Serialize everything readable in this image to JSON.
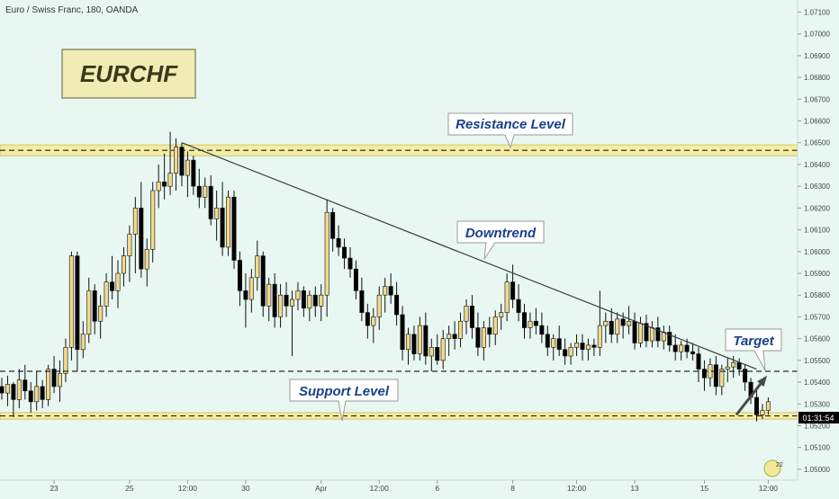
{
  "header": {
    "symbol_line": "Euro / Swiss Franc, 180, OANDA"
  },
  "badge": {
    "label": "EURCHF"
  },
  "annotations": {
    "resistance": "Resistance Level",
    "downtrend": "Downtrend",
    "support": "Support Level",
    "target": "Target"
  },
  "price_tag": "01:31:54",
  "corner_badge": "22",
  "colors": {
    "background": "#e8f7f1",
    "candle_up": "#f2d98b",
    "candle_down": "#000000",
    "zone_fill": "#f2eca6",
    "zone_border": "#d4c864",
    "label_text": "#1a3f8c",
    "badge_fill": "#f0ecb4",
    "badge_text": "#3a3a1a"
  },
  "chart_data": {
    "type": "candlestick",
    "title": "",
    "y_axis_ticks": [
      "1.07100",
      "1.07000",
      "1.06900",
      "1.06800",
      "1.06700",
      "1.06600",
      "1.06500",
      "1.06400",
      "1.06300",
      "1.06200",
      "1.06100",
      "1.06000",
      "1.05900",
      "1.05800",
      "1.05700",
      "1.05600",
      "1.05500",
      "1.05400",
      "1.05300",
      "1.05200",
      "1.05100",
      "1.05000"
    ],
    "ylim": [
      1.0495,
      1.07135
    ],
    "x_axis_labels": [
      {
        "label": "23",
        "slot": 9
      },
      {
        "label": "25",
        "slot": 22
      },
      {
        "label": "12:00",
        "slot": 32
      },
      {
        "label": "30",
        "slot": 42
      },
      {
        "label": "Apr",
        "slot": 55
      },
      {
        "label": "12:00",
        "slot": 65
      },
      {
        "label": "6",
        "slot": 75
      },
      {
        "label": "8",
        "slot": 88
      },
      {
        "label": "12:00",
        "slot": 99
      },
      {
        "label": "13",
        "slot": 109
      },
      {
        "label": "15",
        "slot": 121
      },
      {
        "label": "12:00",
        "slot": 132
      }
    ],
    "resistance_zone": [
      1.0644,
      1.0649
    ],
    "support_zone": [
      1.0523,
      1.0526
    ],
    "current_price_line": 1.0545,
    "downtrend_line": {
      "from": {
        "slot": 31,
        "price": 1.065
      },
      "to": {
        "slot": 130,
        "price": 1.0546
      }
    },
    "target_arrow": {
      "from": {
        "slot": 126.5,
        "price": 1.0525
      },
      "to": {
        "slot": 131.5,
        "price": 1.0542
      }
    },
    "candles": [
      [
        1.0538,
        1.0542,
        1.0532,
        1.0535
      ],
      [
        1.0535,
        1.0543,
        1.0529,
        1.0539
      ],
      [
        1.0539,
        1.054,
        1.0524,
        1.0532
      ],
      [
        1.0532,
        1.0546,
        1.0528,
        1.0541
      ],
      [
        1.0541,
        1.0548,
        1.0532,
        1.0536
      ],
      [
        1.0536,
        1.054,
        1.0526,
        1.0531
      ],
      [
        1.0531,
        1.0545,
        1.0527,
        1.0538
      ],
      [
        1.0538,
        1.0541,
        1.0528,
        1.0532
      ],
      [
        1.0532,
        1.0548,
        1.0529,
        1.0546
      ],
      [
        1.0546,
        1.0552,
        1.0535,
        1.0538
      ],
      [
        1.0538,
        1.055,
        1.0531,
        1.0544
      ],
      [
        1.0544,
        1.056,
        1.054,
        1.0556
      ],
      [
        1.0556,
        1.06,
        1.055,
        1.0598
      ],
      [
        1.0598,
        1.06,
        1.0545,
        1.0555
      ],
      [
        1.0555,
        1.0568,
        1.0551,
        1.0562
      ],
      [
        1.0562,
        1.0588,
        1.0558,
        1.0582
      ],
      [
        1.0582,
        1.0585,
        1.0562,
        1.0568
      ],
      [
        1.0568,
        1.058,
        1.056,
        1.0575
      ],
      [
        1.0575,
        1.059,
        1.057,
        1.0586
      ],
      [
        1.0586,
        1.0598,
        1.0578,
        1.0582
      ],
      [
        1.0582,
        1.0596,
        1.0574,
        1.059
      ],
      [
        1.059,
        1.0602,
        1.0584,
        1.0598
      ],
      [
        1.0598,
        1.0612,
        1.0586,
        1.0608
      ],
      [
        1.0608,
        1.0625,
        1.059,
        1.062
      ],
      [
        1.062,
        1.0632,
        1.0588,
        1.0592
      ],
      [
        1.0592,
        1.0606,
        1.0584,
        1.0601
      ],
      [
        1.0601,
        1.0632,
        1.0595,
        1.0628
      ],
      [
        1.0628,
        1.064,
        1.062,
        1.0632
      ],
      [
        1.0632,
        1.0645,
        1.0624,
        1.063
      ],
      [
        1.063,
        1.0655,
        1.0626,
        1.0636
      ],
      [
        1.0636,
        1.0652,
        1.0628,
        1.0648
      ],
      [
        1.0648,
        1.065,
        1.063,
        1.0635
      ],
      [
        1.0635,
        1.0646,
        1.0625,
        1.0642
      ],
      [
        1.0642,
        1.0644,
        1.0626,
        1.063
      ],
      [
        1.063,
        1.0638,
        1.062,
        1.0625
      ],
      [
        1.0625,
        1.0634,
        1.062,
        1.063
      ],
      [
        1.063,
        1.0635,
        1.0612,
        1.0615
      ],
      [
        1.0615,
        1.0628,
        1.0605,
        1.062
      ],
      [
        1.062,
        1.0632,
        1.0598,
        1.0602
      ],
      [
        1.0602,
        1.0628,
        1.0598,
        1.0625
      ],
      [
        1.0625,
        1.0628,
        1.0592,
        1.0596
      ],
      [
        1.0596,
        1.06,
        1.0575,
        1.0582
      ],
      [
        1.0582,
        1.059,
        1.0565,
        1.0578
      ],
      [
        1.0578,
        1.0592,
        1.0572,
        1.0588
      ],
      [
        1.0588,
        1.0605,
        1.0582,
        1.0598
      ],
      [
        1.0598,
        1.06,
        1.057,
        1.0575
      ],
      [
        1.0575,
        1.0588,
        1.0568,
        1.0585
      ],
      [
        1.0585,
        1.059,
        1.0565,
        1.057
      ],
      [
        1.057,
        1.0585,
        1.0565,
        1.058
      ],
      [
        1.058,
        1.0586,
        1.057,
        1.0575
      ],
      [
        1.0575,
        1.0582,
        1.0552,
        1.0578
      ],
      [
        1.0578,
        1.0586,
        1.0573,
        1.0582
      ],
      [
        1.0582,
        1.0584,
        1.057,
        1.0574
      ],
      [
        1.0574,
        1.0582,
        1.0568,
        1.058
      ],
      [
        1.058,
        1.0584,
        1.057,
        1.0575
      ],
      [
        1.0575,
        1.0585,
        1.0568,
        1.058
      ],
      [
        1.058,
        1.0624,
        1.057,
        1.0618
      ],
      [
        1.0618,
        1.062,
        1.06,
        1.0606
      ],
      [
        1.0606,
        1.0612,
        1.0598,
        1.0602
      ],
      [
        1.0602,
        1.0606,
        1.0592,
        1.0597
      ],
      [
        1.0597,
        1.0602,
        1.0588,
        1.0592
      ],
      [
        1.0592,
        1.0596,
        1.0578,
        1.0582
      ],
      [
        1.0582,
        1.0588,
        1.0568,
        1.0572
      ],
      [
        1.0572,
        1.0576,
        1.056,
        1.0566
      ],
      [
        1.0566,
        1.0574,
        1.0558,
        1.057
      ],
      [
        1.057,
        1.0584,
        1.0564,
        1.058
      ],
      [
        1.058,
        1.0588,
        1.0572,
        1.0584
      ],
      [
        1.0584,
        1.059,
        1.0576,
        1.058
      ],
      [
        1.058,
        1.0586,
        1.0566,
        1.0571
      ],
      [
        1.0571,
        1.0575,
        1.055,
        1.0555
      ],
      [
        1.0555,
        1.0565,
        1.0548,
        1.0562
      ],
      [
        1.0562,
        1.0566,
        1.055,
        1.0553
      ],
      [
        1.0553,
        1.057,
        1.055,
        1.0566
      ],
      [
        1.0566,
        1.0572,
        1.0548,
        1.0552
      ],
      [
        1.0552,
        1.056,
        1.0545,
        1.0556
      ],
      [
        1.0556,
        1.0562,
        1.0548,
        1.055
      ],
      [
        1.055,
        1.0564,
        1.0546,
        1.056
      ],
      [
        1.056,
        1.0566,
        1.0552,
        1.0562
      ],
      [
        1.0562,
        1.0568,
        1.0555,
        1.056
      ],
      [
        1.056,
        1.0572,
        1.0556,
        1.0568
      ],
      [
        1.0568,
        1.0578,
        1.0562,
        1.0575
      ],
      [
        1.0575,
        1.058,
        1.056,
        1.0565
      ],
      [
        1.0565,
        1.0572,
        1.0552,
        1.0556
      ],
      [
        1.0556,
        1.0568,
        1.055,
        1.0565
      ],
      [
        1.0565,
        1.057,
        1.0556,
        1.0562
      ],
      [
        1.0562,
        1.0573,
        1.0557,
        1.057
      ],
      [
        1.057,
        1.0576,
        1.0564,
        1.0572
      ],
      [
        1.0572,
        1.059,
        1.0568,
        1.0586
      ],
      [
        1.0586,
        1.0594,
        1.0574,
        1.0578
      ],
      [
        1.0578,
        1.0585,
        1.0568,
        1.0572
      ],
      [
        1.0572,
        1.0576,
        1.056,
        1.0565
      ],
      [
        1.0565,
        1.0572,
        1.056,
        1.0568
      ],
      [
        1.0568,
        1.0574,
        1.0562,
        1.0566
      ],
      [
        1.0566,
        1.0572,
        1.0558,
        1.0562
      ],
      [
        1.0562,
        1.0566,
        1.0552,
        1.0556
      ],
      [
        1.0556,
        1.0562,
        1.055,
        1.056
      ],
      [
        1.056,
        1.0566,
        1.0552,
        1.0555
      ],
      [
        1.0555,
        1.056,
        1.0548,
        1.0552
      ],
      [
        1.0552,
        1.0558,
        1.0548,
        1.0556
      ],
      [
        1.0556,
        1.0562,
        1.0552,
        1.0558
      ],
      [
        1.0558,
        1.0562,
        1.055,
        1.0555
      ],
      [
        1.0555,
        1.056,
        1.055,
        1.0557
      ],
      [
        1.0557,
        1.056,
        1.0552,
        1.0556
      ],
      [
        1.0556,
        1.0582,
        1.0552,
        1.0566
      ],
      [
        1.0566,
        1.0572,
        1.0558,
        1.0568
      ],
      [
        1.0568,
        1.0574,
        1.0558,
        1.0562
      ],
      [
        1.0562,
        1.0572,
        1.0558,
        1.0569
      ],
      [
        1.0569,
        1.0572,
        1.056,
        1.0566
      ],
      [
        1.0566,
        1.0575,
        1.0562,
        1.0568
      ],
      [
        1.0568,
        1.0572,
        1.0555,
        1.0558
      ],
      [
        1.0558,
        1.057,
        1.0556,
        1.0567
      ],
      [
        1.0567,
        1.0571,
        1.0556,
        1.0559
      ],
      [
        1.0559,
        1.0568,
        1.0556,
        1.0565
      ],
      [
        1.0565,
        1.057,
        1.0556,
        1.0559
      ],
      [
        1.0559,
        1.0566,
        1.0555,
        1.0563
      ],
      [
        1.0563,
        1.0566,
        1.0554,
        1.0557
      ],
      [
        1.0557,
        1.0562,
        1.055,
        1.0554
      ],
      [
        1.0554,
        1.0559,
        1.055,
        1.0557
      ],
      [
        1.0557,
        1.056,
        1.0551,
        1.0554
      ],
      [
        1.0554,
        1.0558,
        1.055,
        1.0553
      ],
      [
        1.0553,
        1.0556,
        1.054,
        1.0546
      ],
      [
        1.0546,
        1.055,
        1.0536,
        1.0542
      ],
      [
        1.0542,
        1.0551,
        1.0538,
        1.0548
      ],
      [
        1.0548,
        1.0552,
        1.0534,
        1.0538
      ],
      [
        1.0538,
        1.0548,
        1.0534,
        1.0546
      ],
      [
        1.0546,
        1.0551,
        1.054,
        1.0547
      ],
      [
        1.0547,
        1.0552,
        1.0542,
        1.0549
      ],
      [
        1.0549,
        1.0551,
        1.0543,
        1.0546
      ],
      [
        1.0546,
        1.0548,
        1.0536,
        1.054
      ],
      [
        1.054,
        1.0542,
        1.053,
        1.0533
      ],
      [
        1.0533,
        1.0536,
        1.0522,
        1.0525
      ],
      [
        1.0525,
        1.053,
        1.0523,
        1.0527
      ],
      [
        1.0527,
        1.0533,
        1.0525,
        1.0531
      ]
    ]
  }
}
